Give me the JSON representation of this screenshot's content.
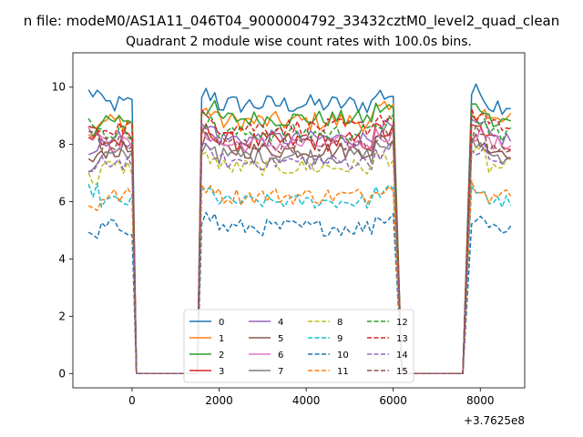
{
  "figure": {
    "suptitle": "n file: modeM0/AS1A11_046T04_9000004792_33432cztM0_level2_quad_clean",
    "title": "Quadrant 2 module wise count rates with 100.0s bins.",
    "offset_text": "+3.7625e8"
  },
  "chart_data": {
    "type": "line",
    "title": "Quadrant 2 module wise count rates with 100.0s bins.",
    "xlabel": "",
    "ylabel": "",
    "x_offset": 376250000,
    "xlim": [
      -1360,
      9020
    ],
    "ylim": [
      -0.5,
      11.2
    ],
    "xticks": [
      0,
      2000,
      4000,
      6000,
      8000
    ],
    "xtick_labels": [
      "0",
      "2000",
      "4000",
      "6000",
      "8000"
    ],
    "yticks": [
      0,
      2,
      4,
      6,
      8,
      10
    ],
    "ytick_labels": [
      "0",
      "2",
      "4",
      "6",
      "8",
      "10"
    ],
    "grid": false,
    "legend_placement": "lower-center",
    "legend_columns": 4,
    "segments": [
      {
        "start": -1000,
        "end": 0,
        "step": 100
      },
      {
        "start": 1600,
        "end": 6000,
        "step": 100
      },
      {
        "start": 7800,
        "end": 8700,
        "step": 100
      }
    ],
    "gaps": [
      {
        "start": 100,
        "end": 1500,
        "value": 0
      },
      {
        "start": 6200,
        "end": 7600,
        "value": 0
      }
    ],
    "series": [
      {
        "name": "0",
        "color": "#1f77b4",
        "dash": "solid",
        "level": 9.4,
        "amplitude": 0.35
      },
      {
        "name": "1",
        "color": "#ff7f0e",
        "dash": "solid",
        "level": 8.8,
        "amplitude": 0.35
      },
      {
        "name": "2",
        "color": "#2ca02c",
        "dash": "solid",
        "level": 8.9,
        "amplitude": 0.3
      },
      {
        "name": "3",
        "color": "#d62728",
        "dash": "solid",
        "level": 8.1,
        "amplitude": 0.35
      },
      {
        "name": "4",
        "color": "#9467bd",
        "dash": "solid",
        "level": 8.2,
        "amplitude": 0.3
      },
      {
        "name": "5",
        "color": "#8c564b",
        "dash": "solid",
        "level": 7.8,
        "amplitude": 0.3
      },
      {
        "name": "6",
        "color": "#e377c2",
        "dash": "solid",
        "level": 8.0,
        "amplitude": 0.3
      },
      {
        "name": "7",
        "color": "#7f7f7f",
        "dash": "solid",
        "level": 7.6,
        "amplitude": 0.3
      },
      {
        "name": "8",
        "color": "#bcbd22",
        "dash": "dashed",
        "level": 7.2,
        "amplitude": 0.3
      },
      {
        "name": "9",
        "color": "#17becf",
        "dash": "dashed",
        "level": 6.0,
        "amplitude": 0.25
      },
      {
        "name": "10",
        "color": "#1f77b4",
        "dash": "dashed",
        "level": 5.1,
        "amplitude": 0.3
      },
      {
        "name": "11",
        "color": "#ff7f0e",
        "dash": "dashed",
        "level": 6.2,
        "amplitude": 0.3
      },
      {
        "name": "12",
        "color": "#2ca02c",
        "dash": "dashed",
        "level": 8.4,
        "amplitude": 0.3
      },
      {
        "name": "13",
        "color": "#d62728",
        "dash": "dashed",
        "level": 8.6,
        "amplitude": 0.3
      },
      {
        "name": "14",
        "color": "#9467bd",
        "dash": "dashed",
        "level": 7.4,
        "amplitude": 0.3
      },
      {
        "name": "15",
        "color": "#8c564b",
        "dash": "dashed",
        "level": 8.0,
        "amplitude": 0.3
      }
    ]
  }
}
